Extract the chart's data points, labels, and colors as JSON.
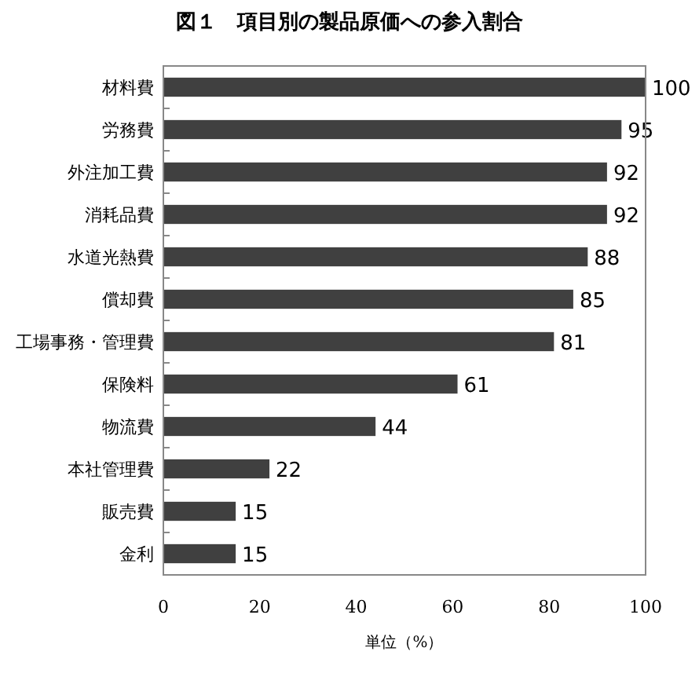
{
  "chart_data": {
    "type": "bar",
    "orientation": "horizontal",
    "title": "図１　項目別の製品原価への参入割合",
    "xlabel": "単位（%）",
    "categories": [
      "材料費",
      "労務費",
      "外注加工費",
      "消耗品費",
      "水道光熱費",
      "償却費",
      "工場事務・管理費",
      "保険料",
      "物流費",
      "本社管理費",
      "販売費",
      "金利"
    ],
    "values": [
      100,
      95,
      92,
      92,
      88,
      85,
      81,
      61,
      44,
      22,
      15,
      15
    ],
    "color": "#404040",
    "xlim": [
      0,
      100
    ],
    "xticks": [
      0,
      20,
      40,
      60,
      80,
      100
    ],
    "data_labels": true,
    "grid": false
  }
}
